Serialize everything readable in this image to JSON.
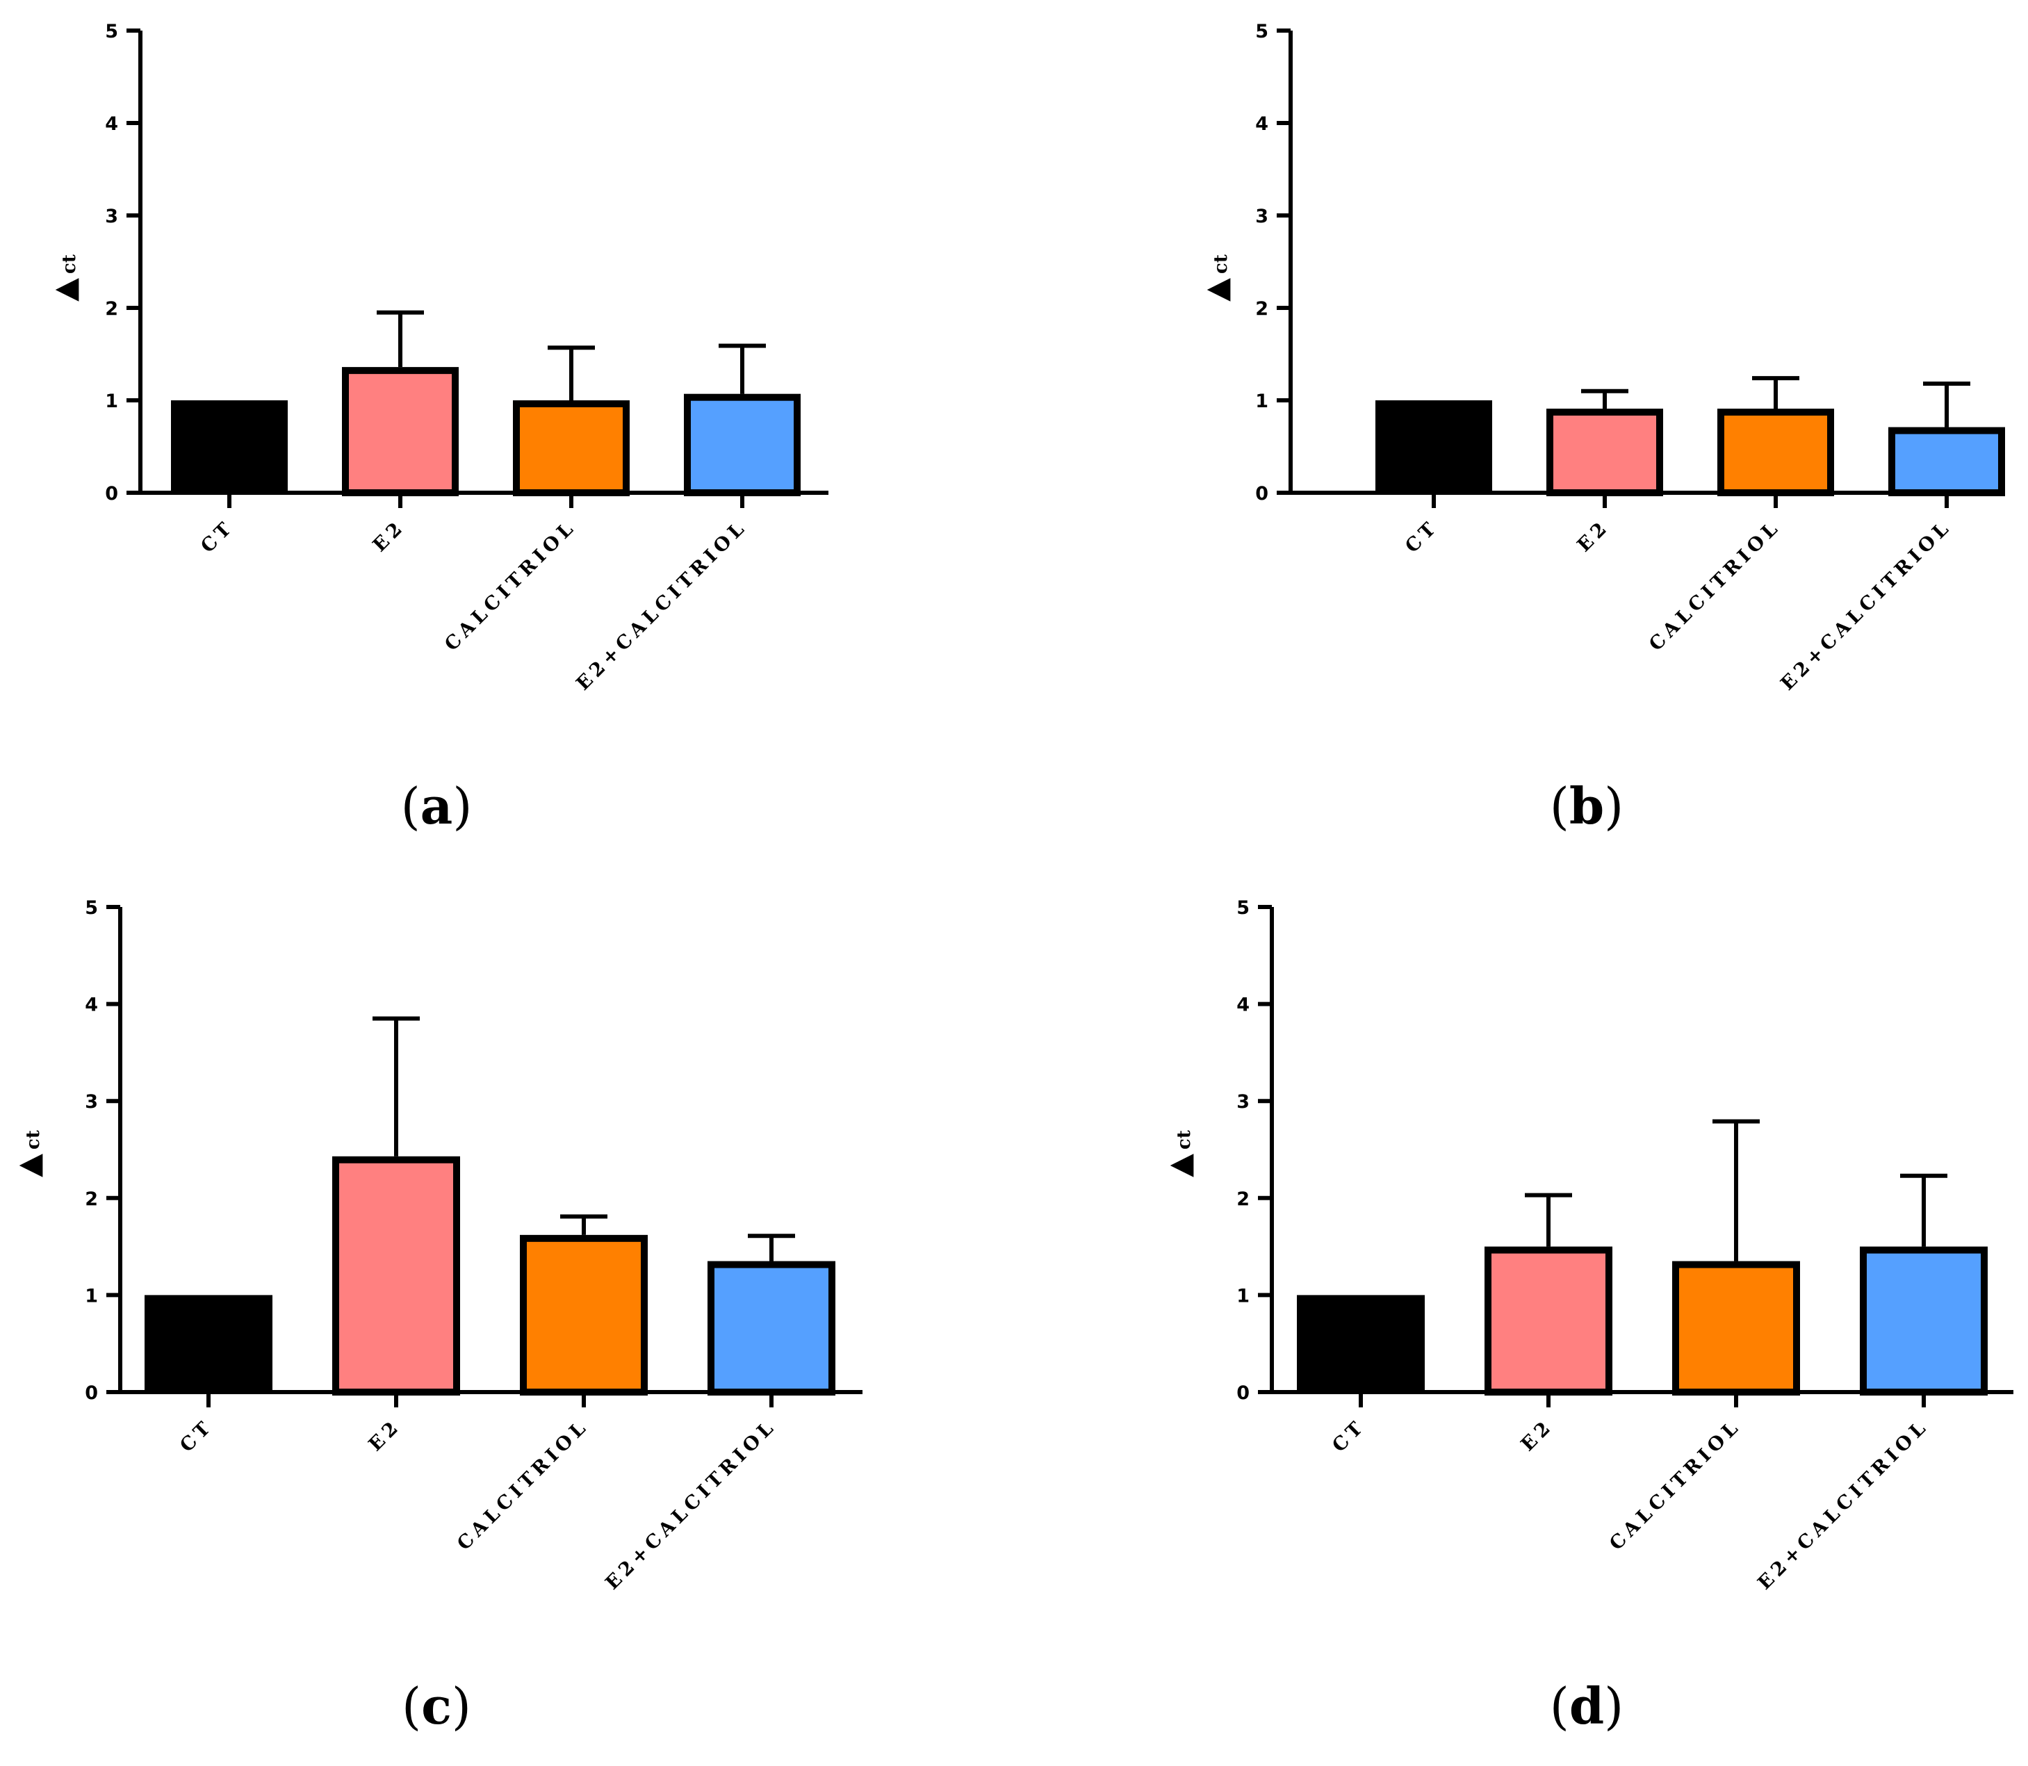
{
  "figure": {
    "categories": [
      "CT",
      "E2",
      "CALCITRIOL",
      "E2+CALCITRIOL"
    ],
    "colors": [
      "#000000",
      "#ff8080",
      "#ff8000",
      "#55a0ff"
    ]
  },
  "chart_data": [
    {
      "type": "bar",
      "panel": "a",
      "categories": [
        "CT",
        "E2",
        "CALCITRIOL",
        "E2+CALCITRIOL"
      ],
      "values": [
        1.0,
        1.36,
        1.0,
        1.07
      ],
      "error_upper": [
        0,
        0.59,
        0.57,
        0.52
      ],
      "ylabel_main": "▲",
      "ylabel_sub": "ct",
      "ylim": [
        0,
        5
      ],
      "yticks": [
        "0",
        "1",
        "2",
        "3",
        "4",
        "5"
      ],
      "caption_open": "(",
      "caption_letter": "a",
      "caption_close": ")"
    },
    {
      "type": "bar",
      "panel": "b",
      "categories": [
        "CT",
        "E2",
        "CALCITRIOL",
        "E2+CALCITRIOL"
      ],
      "values": [
        1.0,
        0.91,
        0.91,
        0.71
      ],
      "error_upper": [
        0,
        0.19,
        0.33,
        0.47
      ],
      "ylabel_main": "▲",
      "ylabel_sub": "ct",
      "ylim": [
        0,
        5
      ],
      "yticks": [
        "0",
        "1",
        "2",
        "3",
        "4",
        "5"
      ],
      "caption_open": "(",
      "caption_letter": "b",
      "caption_close": ")"
    },
    {
      "type": "bar",
      "panel": "c",
      "categories": [
        "CT",
        "E2",
        "CALCITRIOL",
        "E2+CALCITRIOL"
      ],
      "values": [
        1.0,
        2.43,
        1.62,
        1.35
      ],
      "error_upper": [
        0,
        1.42,
        0.19,
        0.26
      ],
      "ylabel_main": "▲",
      "ylabel_sub": "ct",
      "ylim": [
        0,
        5
      ],
      "yticks": [
        "0",
        "1",
        "2",
        "3",
        "4",
        "5"
      ],
      "caption_open": "(",
      "caption_letter": "c",
      "caption_close": ")"
    },
    {
      "type": "bar",
      "panel": "d",
      "categories": [
        "CT",
        "E2",
        "CALCITRIOL",
        "E2+CALCITRIOL"
      ],
      "values": [
        1.0,
        1.5,
        1.35,
        1.5
      ],
      "error_upper": [
        0,
        0.53,
        1.44,
        0.73
      ],
      "ylabel_main": "▲",
      "ylabel_sub": "ct",
      "ylim": [
        0,
        5
      ],
      "yticks": [
        "0",
        "1",
        "2",
        "3",
        "4",
        "5"
      ],
      "caption_open": "(",
      "caption_letter": "d",
      "caption_close": ")"
    }
  ]
}
